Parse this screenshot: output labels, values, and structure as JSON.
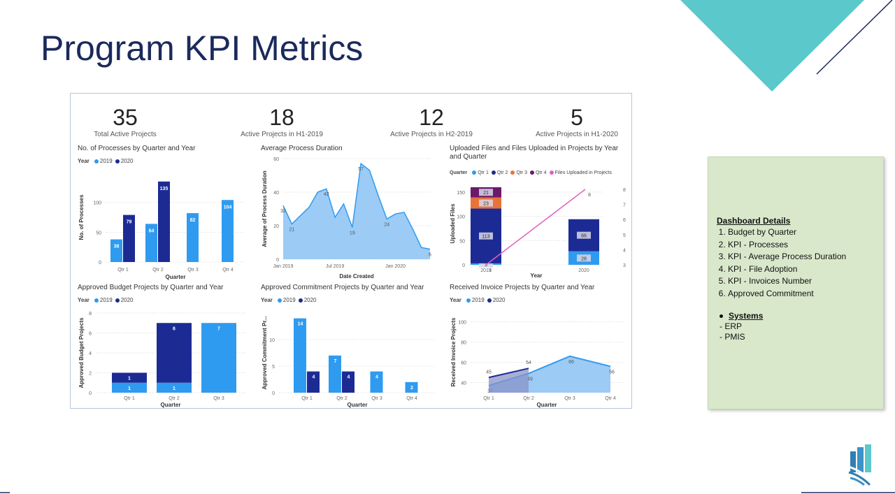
{
  "slide": {
    "title": "Program KPI Metrics",
    "accent_color": "#5bc8cc",
    "title_color": "#1b2a5c"
  },
  "kpis": [
    {
      "value": "35",
      "label": "Total Active Projects"
    },
    {
      "value": "18",
      "label": "Active Projects in H1-2019"
    },
    {
      "value": "12",
      "label": "Active Projects in H2-2019"
    },
    {
      "value": "5",
      "label": "Active Projects in H1-2020"
    }
  ],
  "colors": {
    "y2019": "#2f9bf0",
    "y2020": "#1c2b94",
    "q1": "#2f9bf0",
    "q2": "#1c2b94",
    "q3": "#e8733a",
    "q4": "#6b1a6b",
    "files_line": "#e060c0",
    "area": "#9ccbf5"
  },
  "legend": {
    "year_title": "Year",
    "y2019": "2019",
    "y2020": "2020",
    "quarter_title": "Quarter",
    "q1": "Qtr 1",
    "q2": "Qtr 2",
    "q3": "Qtr 3",
    "q4": "Qtr 4",
    "files": "Files Uploaded in Projects"
  },
  "chart_data": [
    {
      "type": "bar",
      "title": "No. of Processes by Quarter and Year",
      "xlabel": "Quarter",
      "ylabel": "No. of Processes",
      "categories": [
        "Qtr 1",
        "Qtr 2",
        "Qtr 3",
        "Qtr 4"
      ],
      "ylim": [
        0,
        150
      ],
      "yticks": [
        "0",
        "50",
        "100"
      ],
      "series": [
        {
          "name": "2019",
          "values": [
            38,
            64,
            82,
            104
          ]
        },
        {
          "name": "2020",
          "values": [
            79,
            135,
            null,
            null
          ]
        }
      ]
    },
    {
      "type": "area",
      "title": "Average Process Duration",
      "xlabel": "Date Created",
      "ylabel": "Average of Process Duration",
      "xticks": [
        "Jan 2019",
        "Jul 2019",
        "Jan 2020"
      ],
      "yticks": [
        "0",
        "20",
        "40",
        "60"
      ],
      "ylim": [
        0,
        60
      ],
      "values": [
        32,
        21,
        26,
        31,
        40,
        42,
        25,
        33,
        19,
        57,
        53,
        38,
        24,
        27,
        28,
        18,
        7,
        6
      ],
      "data_labels": [
        {
          "index": 0,
          "text": "32"
        },
        {
          "index": 1,
          "text": "21"
        },
        {
          "index": 5,
          "text": "42"
        },
        {
          "index": 8,
          "text": "19"
        },
        {
          "index": 9,
          "text": "57"
        },
        {
          "index": 12,
          "text": "24"
        },
        {
          "index": 17,
          "text": "6"
        }
      ]
    },
    {
      "type": "bar",
      "title": "Uploaded Files and Files Uploaded in Projects by Year and Quarter",
      "title_lines": [
        "Uploaded Files and Files Uploaded in Projects by Year",
        "and Quarter"
      ],
      "xlabel": "Year",
      "ylabel": "Uploaded Files",
      "categories": [
        "2019",
        "2020"
      ],
      "ylim": [
        0,
        170
      ],
      "yticks": [
        "0",
        "50",
        "100",
        "150"
      ],
      "y2ticks": [
        "3",
        "4",
        "5",
        "6",
        "7",
        "8"
      ],
      "stacks": [
        {
          "category": "2019",
          "segments": [
            {
              "name": "Qtr 1",
              "value": 3,
              "label": "3"
            },
            {
              "name": "Qtr 2",
              "value": 113,
              "label": "113"
            },
            {
              "name": "Qtr 3",
              "value": 23,
              "label": "23"
            },
            {
              "name": "Qtr 4",
              "value": 21,
              "label": "21"
            }
          ]
        },
        {
          "category": "2020",
          "segments": [
            {
              "name": "Qtr 1",
              "value": 28,
              "label": "28"
            },
            {
              "name": "Qtr 2",
              "value": 66,
              "label": "66"
            }
          ]
        }
      ],
      "line": {
        "name": "Files Uploaded in Projects",
        "values": [
          3,
          8
        ],
        "labels": [
          "3",
          "8"
        ]
      }
    },
    {
      "type": "bar",
      "title": "Approved Budget Projects by Quarter and Year",
      "xlabel": "Quarter",
      "ylabel": "Approved Budget Projects",
      "categories": [
        "Qtr 1",
        "Qtr 2",
        "Qtr 3"
      ],
      "ylim": [
        0,
        8
      ],
      "yticks": [
        "0",
        "2",
        "4",
        "6",
        "8"
      ],
      "series": [
        {
          "name": "2019",
          "values": [
            1,
            1,
            7
          ]
        },
        {
          "name": "2020",
          "values": [
            1,
            6,
            0
          ]
        }
      ],
      "stacked": true
    },
    {
      "type": "bar",
      "title": "Approved Commitment Projects by Quarter and Year",
      "xlabel": "Quarter",
      "ylabel": "Approved Commitment Pr...",
      "categories": [
        "Qtr 1",
        "Qtr 2",
        "Qtr 3",
        "Qtr 4"
      ],
      "ylim": [
        0,
        15
      ],
      "yticks": [
        "0",
        "5",
        "10"
      ],
      "series": [
        {
          "name": "2019",
          "values": [
            14,
            7,
            4,
            2
          ]
        },
        {
          "name": "2020",
          "values": [
            4,
            4,
            null,
            null
          ]
        }
      ]
    },
    {
      "type": "area",
      "title": "Received Invoice Projects by Quarter and Year",
      "xlabel": "Quarter",
      "ylabel": "Received Invoice Projects",
      "categories": [
        "Qtr 1",
        "Qtr 2",
        "Qtr 3",
        "Qtr 4"
      ],
      "ylim": [
        30,
        110
      ],
      "yticks": [
        "40",
        "60",
        "80",
        "100"
      ],
      "series": [
        {
          "name": "2019",
          "values": [
            37,
            49,
            66,
            56
          ],
          "labels": [
            "37",
            "49",
            "66",
            "56"
          ]
        },
        {
          "name": "2020",
          "values": [
            45,
            54,
            null,
            null
          ],
          "labels": [
            "45",
            "54",
            "",
            ""
          ]
        }
      ]
    }
  ],
  "details": {
    "heading": "Dashboard Details",
    "items": [
      "Budget by Quarter",
      "KPI - Processes",
      "KPI - Average Process Duration",
      "KPI - File Adoption",
      "KPI - Invoices Number",
      "Approved Commitment"
    ],
    "systems_heading": "Systems",
    "systems": [
      "- ERP",
      "- PMIS"
    ]
  }
}
